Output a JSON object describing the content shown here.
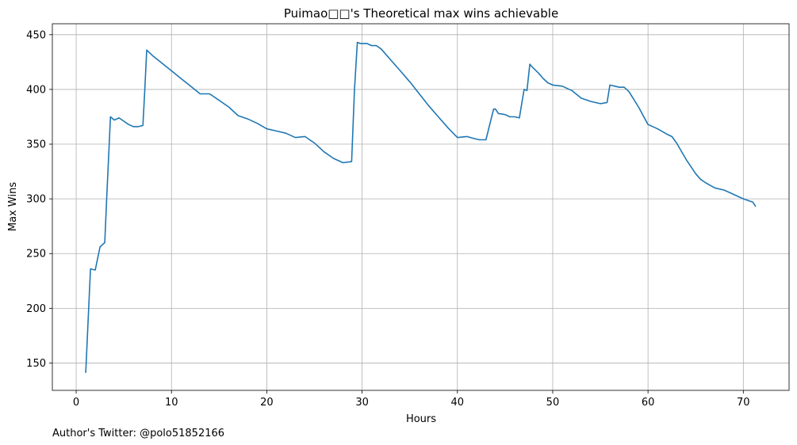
{
  "chart_data": {
    "type": "line",
    "title": "Puimao□□'s Theoretical max wins achievable",
    "xlabel": "Hours",
    "ylabel": "Max Wins",
    "xlim": [
      -2.5,
      74.8
    ],
    "ylim": [
      125,
      460
    ],
    "xticks": [
      0,
      10,
      20,
      30,
      40,
      50,
      60,
      70
    ],
    "yticks": [
      150,
      200,
      250,
      300,
      350,
      400,
      450
    ],
    "grid": true,
    "line_color": "#1f77b4",
    "series": [
      {
        "x": [
          1.0,
          1.5,
          2.0,
          2.5,
          3.0,
          3.2,
          3.6,
          4.0,
          4.5,
          5.0,
          5.5,
          6.0,
          6.5,
          7.0,
          7.2,
          7.4,
          8.0,
          9.0,
          10.0,
          11.0,
          12.0,
          13.0,
          14.0,
          15.0,
          16.0,
          17.0,
          18.0,
          19.0,
          20.0,
          21.0,
          22.0,
          23.0,
          24.0,
          25.0,
          26.0,
          27.0,
          28.0,
          28.9,
          29.2,
          29.5,
          29.8,
          30.5,
          31.0,
          31.5,
          32.0,
          33.0,
          34.0,
          35.0,
          36.0,
          37.0,
          38.0,
          39.0,
          40.0,
          41.0,
          41.8,
          42.3,
          43.0,
          43.8,
          44.0,
          44.3,
          45.0,
          45.5,
          46.0,
          46.5,
          47.0,
          47.3,
          47.6,
          47.8,
          48.5,
          49.0,
          49.5,
          50.0,
          51.0,
          52.0,
          53.0,
          54.0,
          55.0,
          55.7,
          56.0,
          56.5,
          57.0,
          57.5,
          58.0,
          59.0,
          60.0,
          61.0,
          62.0,
          62.5,
          63.0,
          64.0,
          65.0,
          65.5,
          66.0,
          67.0,
          68.0,
          69.0,
          69.5,
          70.0,
          71.0,
          71.3
        ],
        "y": [
          141,
          236,
          235,
          256,
          260,
          300,
          375,
          372,
          374,
          371,
          368,
          366,
          366,
          367,
          400,
          436,
          431,
          424,
          417,
          410,
          403,
          396,
          396,
          390,
          384,
          376,
          373,
          369,
          364,
          362,
          360,
          356,
          357,
          351,
          343,
          337,
          333,
          334,
          400,
          443,
          442,
          442,
          440,
          440,
          437,
          427,
          417,
          407,
          396,
          385,
          375,
          365,
          356,
          357,
          355,
          354,
          354,
          382,
          382,
          378,
          377,
          375,
          375,
          374,
          400,
          399,
          423,
          421,
          415,
          410,
          406,
          404,
          403,
          399,
          392,
          389,
          387,
          388,
          404,
          403,
          402,
          402,
          398,
          384,
          368,
          364,
          359,
          357,
          351,
          336,
          323,
          318,
          315,
          310,
          308,
          304,
          302,
          300,
          297,
          293
        ]
      }
    ]
  },
  "footer": {
    "text": "Author's Twitter: @polo51852166"
  }
}
